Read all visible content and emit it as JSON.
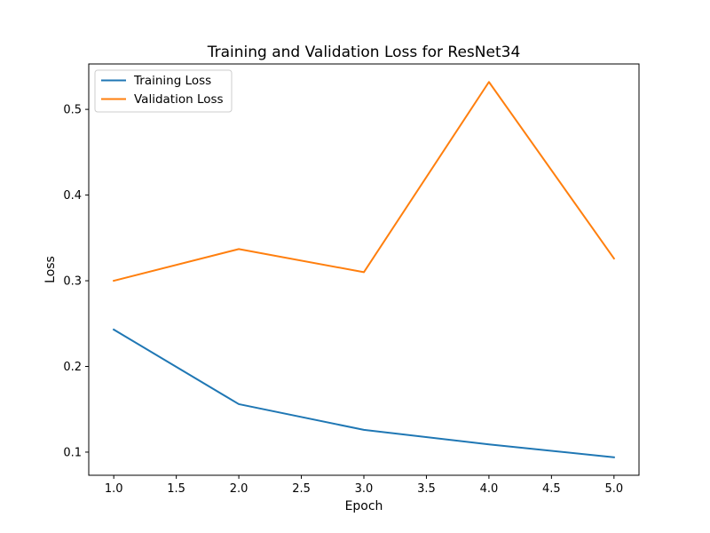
{
  "chart_data": {
    "type": "line",
    "title": "Training and Validation Loss for ResNet34",
    "xlabel": "Epoch",
    "ylabel": "Loss",
    "x": [
      1.0,
      2.0,
      3.0,
      4.0,
      5.0
    ],
    "xlim": [
      0.8,
      5.2
    ],
    "ylim": [
      0.073,
      0.553
    ],
    "xticks": [
      1.0,
      1.5,
      2.0,
      2.5,
      3.0,
      3.5,
      4.0,
      4.5,
      5.0
    ],
    "xtick_labels": [
      "1.0",
      "1.5",
      "2.0",
      "2.5",
      "3.0",
      "3.5",
      "4.0",
      "4.5",
      "5.0"
    ],
    "yticks": [
      0.1,
      0.2,
      0.3,
      0.4,
      0.5
    ],
    "ytick_labels": [
      "0.1",
      "0.2",
      "0.3",
      "0.4",
      "0.5"
    ],
    "grid": false,
    "legend_position": "top-left",
    "series": [
      {
        "name": "Training Loss",
        "color": "#1f77b4",
        "values": [
          0.243,
          0.156,
          0.126,
          0.109,
          0.094
        ]
      },
      {
        "name": "Validation Loss",
        "color": "#ff7f0e",
        "values": [
          0.3,
          0.337,
          0.31,
          0.532,
          0.326
        ]
      }
    ]
  }
}
